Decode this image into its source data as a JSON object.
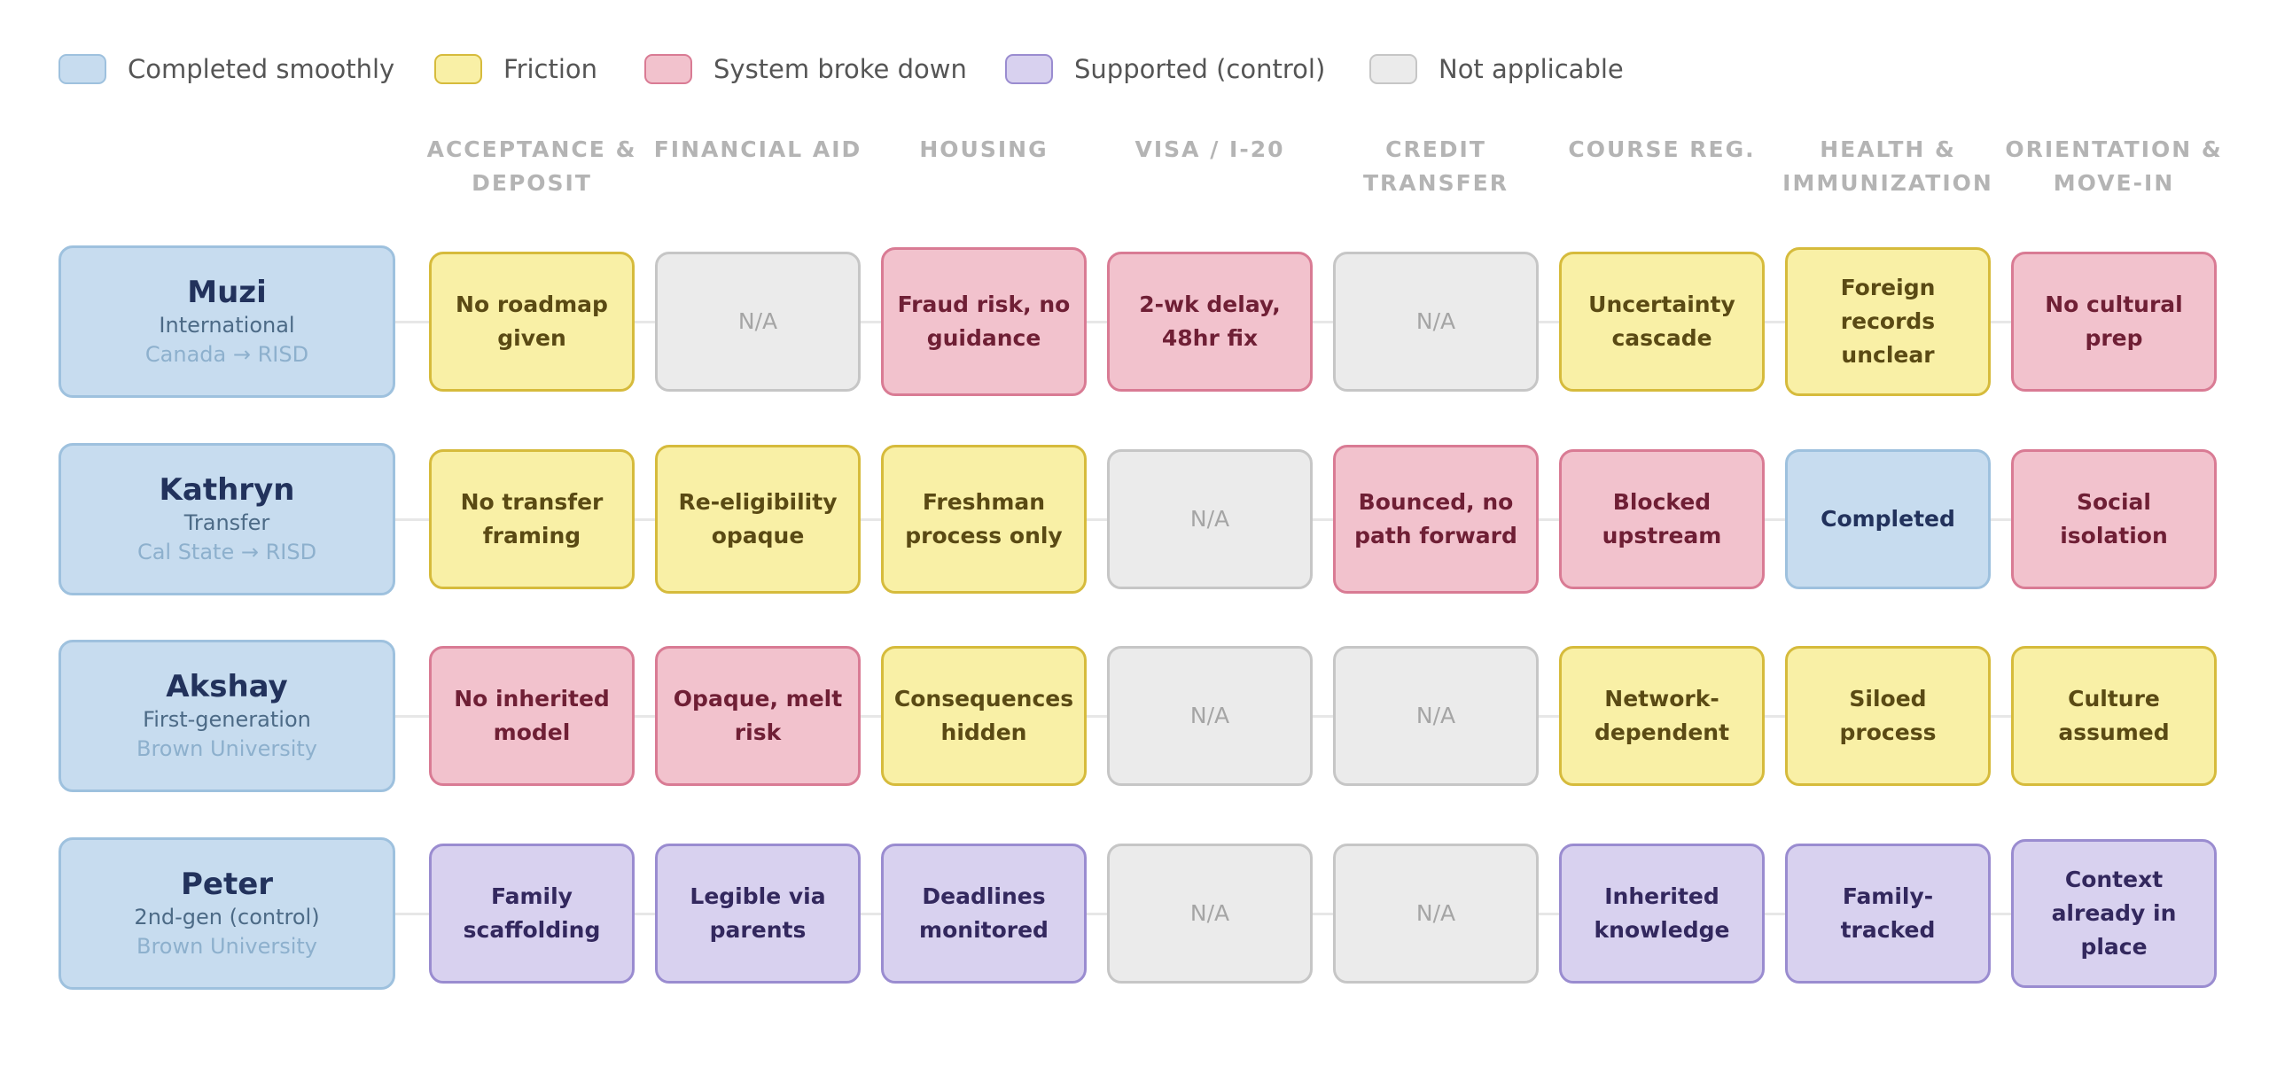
{
  "legend": [
    {
      "label": "Completed smoothly",
      "status": "smooth",
      "fill": "#c7dcef",
      "border": "#9ec1de"
    },
    {
      "label": "Friction",
      "status": "friction",
      "fill": "#f9f0a6",
      "border": "#d6bb3c"
    },
    {
      "label": "System broke down",
      "status": "broke",
      "fill": "#f2c2cd",
      "border": "#d97b94"
    },
    {
      "label": "Supported (control)",
      "status": "support",
      "fill": "#d8d1ef",
      "border": "#9a8cd0"
    },
    {
      "label": "Not applicable",
      "status": "na",
      "fill": "#ebebeb",
      "border": "#c6c6c6"
    }
  ],
  "stages": [
    "ACCEPTANCE &\nDEPOSIT",
    "FINANCIAL AID",
    "HOUSING",
    "VISA / I-20",
    "CREDIT\nTRANSFER",
    "COURSE REG.",
    "HEALTH &\nIMMUNIZATION",
    "ORIENTATION &\nMOVE-IN"
  ],
  "students": [
    {
      "name": "Muzi",
      "type": "International",
      "school": "Canada → RISD",
      "cells": [
        {
          "text": "No roadmap given",
          "status": "friction"
        },
        {
          "text": "N/A",
          "status": "na"
        },
        {
          "text": "Fraud risk, no guidance",
          "status": "broke"
        },
        {
          "text": "2-wk delay, 48hr fix",
          "status": "broke"
        },
        {
          "text": "N/A",
          "status": "na"
        },
        {
          "text": "Uncertainty cascade",
          "status": "friction"
        },
        {
          "text": "Foreign records unclear",
          "status": "friction"
        },
        {
          "text": "No cultural prep",
          "status": "broke"
        }
      ]
    },
    {
      "name": "Kathryn",
      "type": "Transfer",
      "school": "Cal State → RISD",
      "cells": [
        {
          "text": "No transfer framing",
          "status": "friction"
        },
        {
          "text": "Re-eligibility opaque",
          "status": "friction"
        },
        {
          "text": "Freshman process only",
          "status": "friction"
        },
        {
          "text": "N/A",
          "status": "na"
        },
        {
          "text": "Bounced, no path forward",
          "status": "broke"
        },
        {
          "text": "Blocked upstream",
          "status": "broke"
        },
        {
          "text": "Completed",
          "status": "smooth"
        },
        {
          "text": "Social isolation",
          "status": "broke"
        }
      ]
    },
    {
      "name": "Akshay",
      "type": "First-generation",
      "school": "Brown University",
      "cells": [
        {
          "text": "No inherited model",
          "status": "broke"
        },
        {
          "text": "Opaque, melt risk",
          "status": "broke"
        },
        {
          "text": "Consequences hidden",
          "status": "friction"
        },
        {
          "text": "N/A",
          "status": "na"
        },
        {
          "text": "N/A",
          "status": "na"
        },
        {
          "text": "Network-dependent",
          "status": "friction"
        },
        {
          "text": "Siloed process",
          "status": "friction"
        },
        {
          "text": "Culture assumed",
          "status": "friction"
        }
      ]
    },
    {
      "name": "Peter",
      "type": "2nd-gen (control)",
      "school": "Brown University",
      "cells": [
        {
          "text": "Family scaffolding",
          "status": "support"
        },
        {
          "text": "Legible via parents",
          "status": "support"
        },
        {
          "text": "Deadlines monitored",
          "status": "support"
        },
        {
          "text": "N/A",
          "status": "na"
        },
        {
          "text": "N/A",
          "status": "na"
        },
        {
          "text": "Inherited knowledge",
          "status": "support"
        },
        {
          "text": "Family-tracked",
          "status": "support"
        },
        {
          "text": "Context already in place",
          "status": "support"
        }
      ]
    }
  ]
}
